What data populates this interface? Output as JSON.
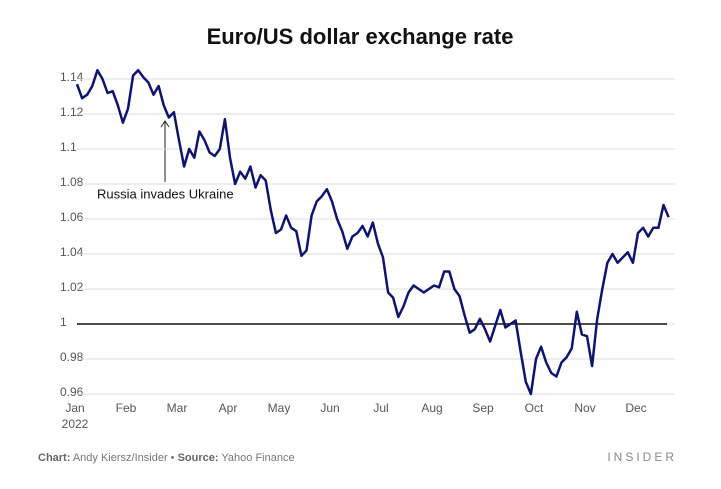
{
  "chart_data": {
    "type": "line",
    "title": "Euro/US dollar exchange rate",
    "categories": [
      "Jan",
      null,
      null,
      null,
      null,
      null,
      null,
      null,
      null,
      null,
      "Feb",
      null,
      null,
      null,
      null,
      null,
      null,
      null,
      null,
      null,
      "Mar",
      null,
      null,
      null,
      null,
      null,
      null,
      null,
      null,
      null,
      "Apr",
      null,
      null,
      null,
      null,
      null,
      null,
      null,
      null,
      null,
      "May",
      null,
      null,
      null,
      null,
      null,
      null,
      null,
      null,
      null,
      "Jun",
      null,
      null,
      null,
      null,
      null,
      null,
      null,
      null,
      null,
      "Jul",
      null,
      null,
      null,
      null,
      null,
      null,
      null,
      null,
      null,
      "Aug",
      null,
      null,
      null,
      null,
      null,
      null,
      null,
      null,
      null,
      "Sep",
      null,
      null,
      null,
      null,
      null,
      null,
      null,
      null,
      null,
      "Oct",
      null,
      null,
      null,
      null,
      null,
      null,
      null,
      null,
      null,
      "Nov",
      null,
      null,
      null,
      null,
      null,
      null,
      null,
      null,
      null,
      "Dec",
      null,
      null,
      null,
      null,
      null,
      null
    ],
    "first_category_year": "2022",
    "series": [
      {
        "name": "EUR/USD",
        "color": "#0d1470",
        "values": [
          1.137,
          1.129,
          1.131,
          1.136,
          1.145,
          1.14,
          1.132,
          1.133,
          1.125,
          1.115,
          1.123,
          1.142,
          1.145,
          1.141,
          1.138,
          1.131,
          1.136,
          1.125,
          1.118,
          1.121,
          1.105,
          1.09,
          1.1,
          1.095,
          1.11,
          1.105,
          1.098,
          1.096,
          1.1,
          1.117,
          1.095,
          1.08,
          1.087,
          1.083,
          1.09,
          1.078,
          1.085,
          1.082,
          1.065,
          1.052,
          1.054,
          1.062,
          1.055,
          1.053,
          1.039,
          1.042,
          1.062,
          1.07,
          1.073,
          1.077,
          1.07,
          1.06,
          1.053,
          1.043,
          1.05,
          1.052,
          1.056,
          1.05,
          1.058,
          1.046,
          1.038,
          1.018,
          1.015,
          1.004,
          1.01,
          1.018,
          1.022,
          1.02,
          1.018,
          1.02,
          1.022,
          1.021,
          1.03,
          1.03,
          1.02,
          1.016,
          1.005,
          0.995,
          0.997,
          1.003,
          0.997,
          0.99,
          0.999,
          1.008,
          0.998,
          1.0,
          1.002,
          0.984,
          0.967,
          0.96,
          0.98,
          0.987,
          0.978,
          0.972,
          0.97,
          0.978,
          0.981,
          0.986,
          1.007,
          0.994,
          0.993,
          0.976,
          1.003,
          1.02,
          1.035,
          1.04,
          1.035,
          1.038,
          1.041,
          1.035,
          1.052,
          1.055,
          1.05,
          1.055,
          1.055,
          1.068,
          1.061
        ]
      }
    ],
    "reference_line": 1,
    "annotation": "Russia invades Ukraine",
    "ylim": [
      0.96,
      1.14
    ],
    "yticks": [
      0.96,
      0.98,
      1,
      1.02,
      1.04,
      1.06,
      1.08,
      1.1,
      1.12,
      1.14
    ],
    "grid": true,
    "credit_label": "Chart:",
    "credit": "Andy Kiersz/Insider •",
    "source_label": "Source:",
    "source": "Yahoo Finance",
    "brand": "INSIDER"
  }
}
